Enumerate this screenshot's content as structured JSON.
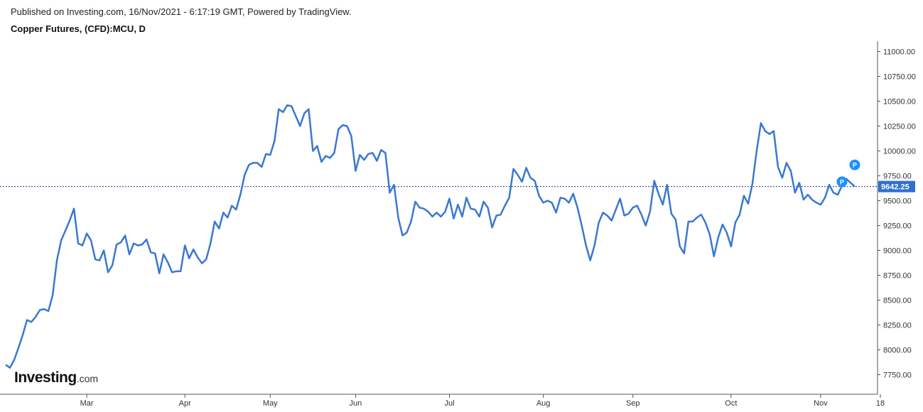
{
  "header": {
    "published": "Published on Investing.com, 16/Nov/2021 - 6:17:19 GMT, Powered by TradingView.",
    "title": "Copper Futures, (CFD):MCU, D"
  },
  "logo": {
    "main": "Investing",
    "suffix": ".com"
  },
  "colors": {
    "line": "#3a78d1",
    "axis": "#555555",
    "price_tag": "#2f6fd0",
    "marker": "#1e90ff",
    "dotted": "#1f3a7a"
  },
  "chart_data": {
    "type": "line",
    "title": "Copper Futures, (CFD):MCU, D",
    "xlabel": "",
    "ylabel": "",
    "ylim": [
      7650,
      11100
    ],
    "y_ticks": [
      "11000.00",
      "10750.00",
      "10500.00",
      "10250.00",
      "10000.00",
      "9750.00",
      "9500.00",
      "9250.00",
      "9000.00",
      "8750.00",
      "8500.00",
      "8250.00",
      "8000.00",
      "7750.00"
    ],
    "x_tick_labels": [
      "Mar",
      "Apr",
      "May",
      "Jun",
      "Jul",
      "Aug",
      "Sep",
      "Oct",
      "Nov",
      "18"
    ],
    "x_tick_index": [
      19,
      42,
      62,
      82,
      104,
      126,
      147,
      170,
      191,
      205
    ],
    "last_price": 9642.25,
    "last_price_label": "9642.25",
    "markers": [
      {
        "label": "P",
        "index": 199,
        "value": 9860
      },
      {
        "label": "P",
        "index": 196,
        "value": 9690
      }
    ],
    "series": [
      {
        "name": "Copper Futures",
        "values": [
          7850,
          7820,
          7900,
          8020,
          8150,
          8300,
          8280,
          8330,
          8400,
          8410,
          8390,
          8550,
          8900,
          9100,
          9200,
          9300,
          9420,
          9070,
          9050,
          9170,
          9100,
          8910,
          8900,
          9000,
          8780,
          8850,
          9060,
          9080,
          9150,
          8960,
          9070,
          9050,
          9060,
          9110,
          8980,
          8970,
          8770,
          8960,
          8880,
          8780,
          8790,
          8790,
          9050,
          8920,
          9010,
          8930,
          8870,
          8910,
          9070,
          9290,
          9220,
          9380,
          9330,
          9450,
          9410,
          9560,
          9760,
          9860,
          9880,
          9880,
          9840,
          9970,
          9960,
          10100,
          10420,
          10390,
          10460,
          10450,
          10350,
          10250,
          10380,
          10420,
          10000,
          10050,
          9890,
          9950,
          9930,
          9980,
          10220,
          10260,
          10250,
          10150,
          9800,
          9960,
          9910,
          9970,
          9980,
          9900,
          10010,
          9980,
          9580,
          9660,
          9330,
          9150,
          9180,
          9290,
          9490,
          9430,
          9420,
          9390,
          9340,
          9380,
          9340,
          9390,
          9520,
          9320,
          9460,
          9340,
          9530,
          9420,
          9410,
          9340,
          9490,
          9430,
          9230,
          9350,
          9360,
          9450,
          9530,
          9820,
          9760,
          9690,
          9830,
          9730,
          9700,
          9550,
          9480,
          9500,
          9480,
          9380,
          9530,
          9520,
          9480,
          9570,
          9430,
          9250,
          9050,
          8900,
          9050,
          9280,
          9380,
          9350,
          9300,
          9410,
          9520,
          9350,
          9370,
          9430,
          9450,
          9360,
          9250,
          9390,
          9700,
          9570,
          9460,
          9660,
          9370,
          9310,
          9040,
          8970,
          9290,
          9290,
          9330,
          9360,
          9280,
          9160,
          8940,
          9130,
          9260,
          9180,
          9040,
          9280,
          9360,
          9550,
          9470,
          9670,
          10000,
          10280,
          10200,
          10170,
          10200,
          9840,
          9730,
          9880,
          9800,
          9580,
          9680,
          9510,
          9560,
          9510,
          9480,
          9460,
          9530,
          9660,
          9580,
          9560,
          9650,
          9720,
          9680,
          9642.25
        ]
      }
    ]
  }
}
